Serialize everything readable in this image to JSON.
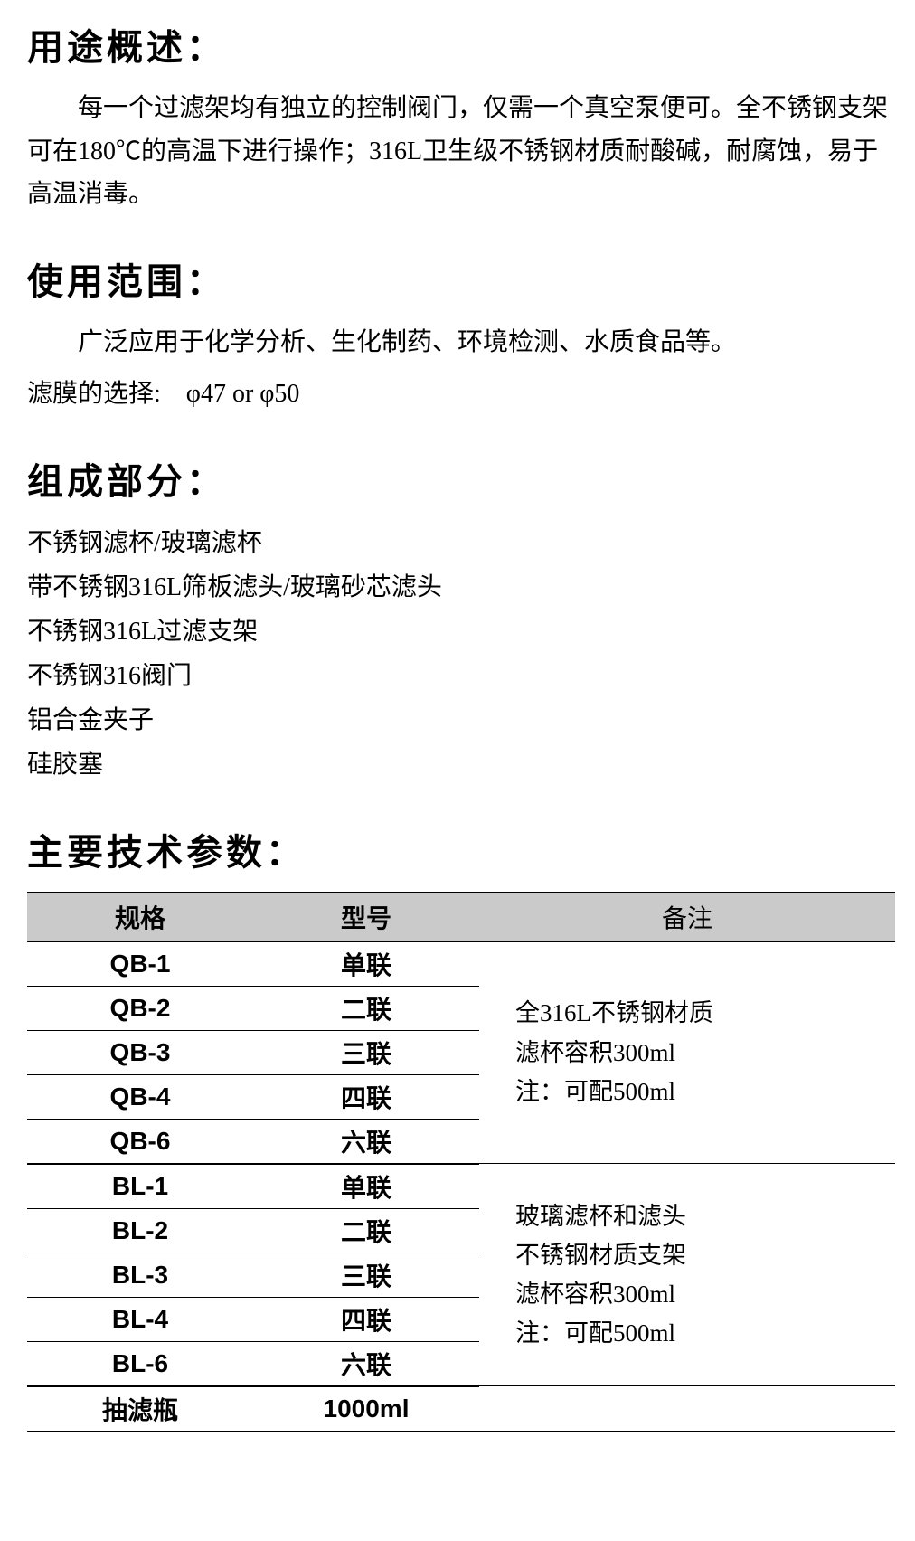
{
  "sections": {
    "overview": {
      "title": "用途概述：",
      "text": "每一个过滤架均有独立的控制阀门，仅需一个真空泵便可。全不锈钢支架可在180℃的高温下进行操作；316L卫生级不锈钢材质耐酸碱，耐腐蚀，易于高温消毒。"
    },
    "scope": {
      "title": "使用范围：",
      "text1": "广泛应用于化学分析、生化制药、环境检测、水质食品等。",
      "text2": "滤膜的选择:　φ47 or φ50"
    },
    "components": {
      "title": "组成部分：",
      "items": [
        "不锈钢滤杯/玻璃滤杯",
        "带不锈钢316L筛板滤头/玻璃砂芯滤头",
        "不锈钢316L过滤支架",
        "不锈钢316阀门",
        "铝合金夹子",
        "硅胶塞"
      ]
    },
    "specs": {
      "title": "主要技术参数：",
      "headers": {
        "spec": "规格",
        "model": "型号",
        "note": "备注"
      },
      "group1": {
        "rows": [
          {
            "spec": "QB-1",
            "model": "单联"
          },
          {
            "spec": "QB-2",
            "model": "二联"
          },
          {
            "spec": "QB-3",
            "model": "三联"
          },
          {
            "spec": "QB-4",
            "model": "四联"
          },
          {
            "spec": "QB-6",
            "model": "六联"
          }
        ],
        "note_lines": [
          "全316L不锈钢材质",
          "滤杯容积300ml",
          "注：可配500ml"
        ]
      },
      "group2": {
        "rows": [
          {
            "spec": "BL-1",
            "model": "单联"
          },
          {
            "spec": "BL-2",
            "model": "二联"
          },
          {
            "spec": "BL-3",
            "model": "三联"
          },
          {
            "spec": "BL-4",
            "model": "四联"
          },
          {
            "spec": "BL-6",
            "model": "六联"
          }
        ],
        "note_lines": [
          "玻璃滤杯和滤头",
          "不锈钢材质支架",
          "滤杯容积300ml",
          "注：可配500ml"
        ]
      },
      "last_row": {
        "spec": "抽滤瓶",
        "model": "1000ml"
      }
    }
  },
  "styles": {
    "background_color": "#ffffff",
    "text_color": "#000000",
    "table_header_bg": "#cacaca",
    "table_border_color": "#000000",
    "title_fontsize": 40,
    "body_fontsize": 28,
    "table_fontsize": 28
  }
}
